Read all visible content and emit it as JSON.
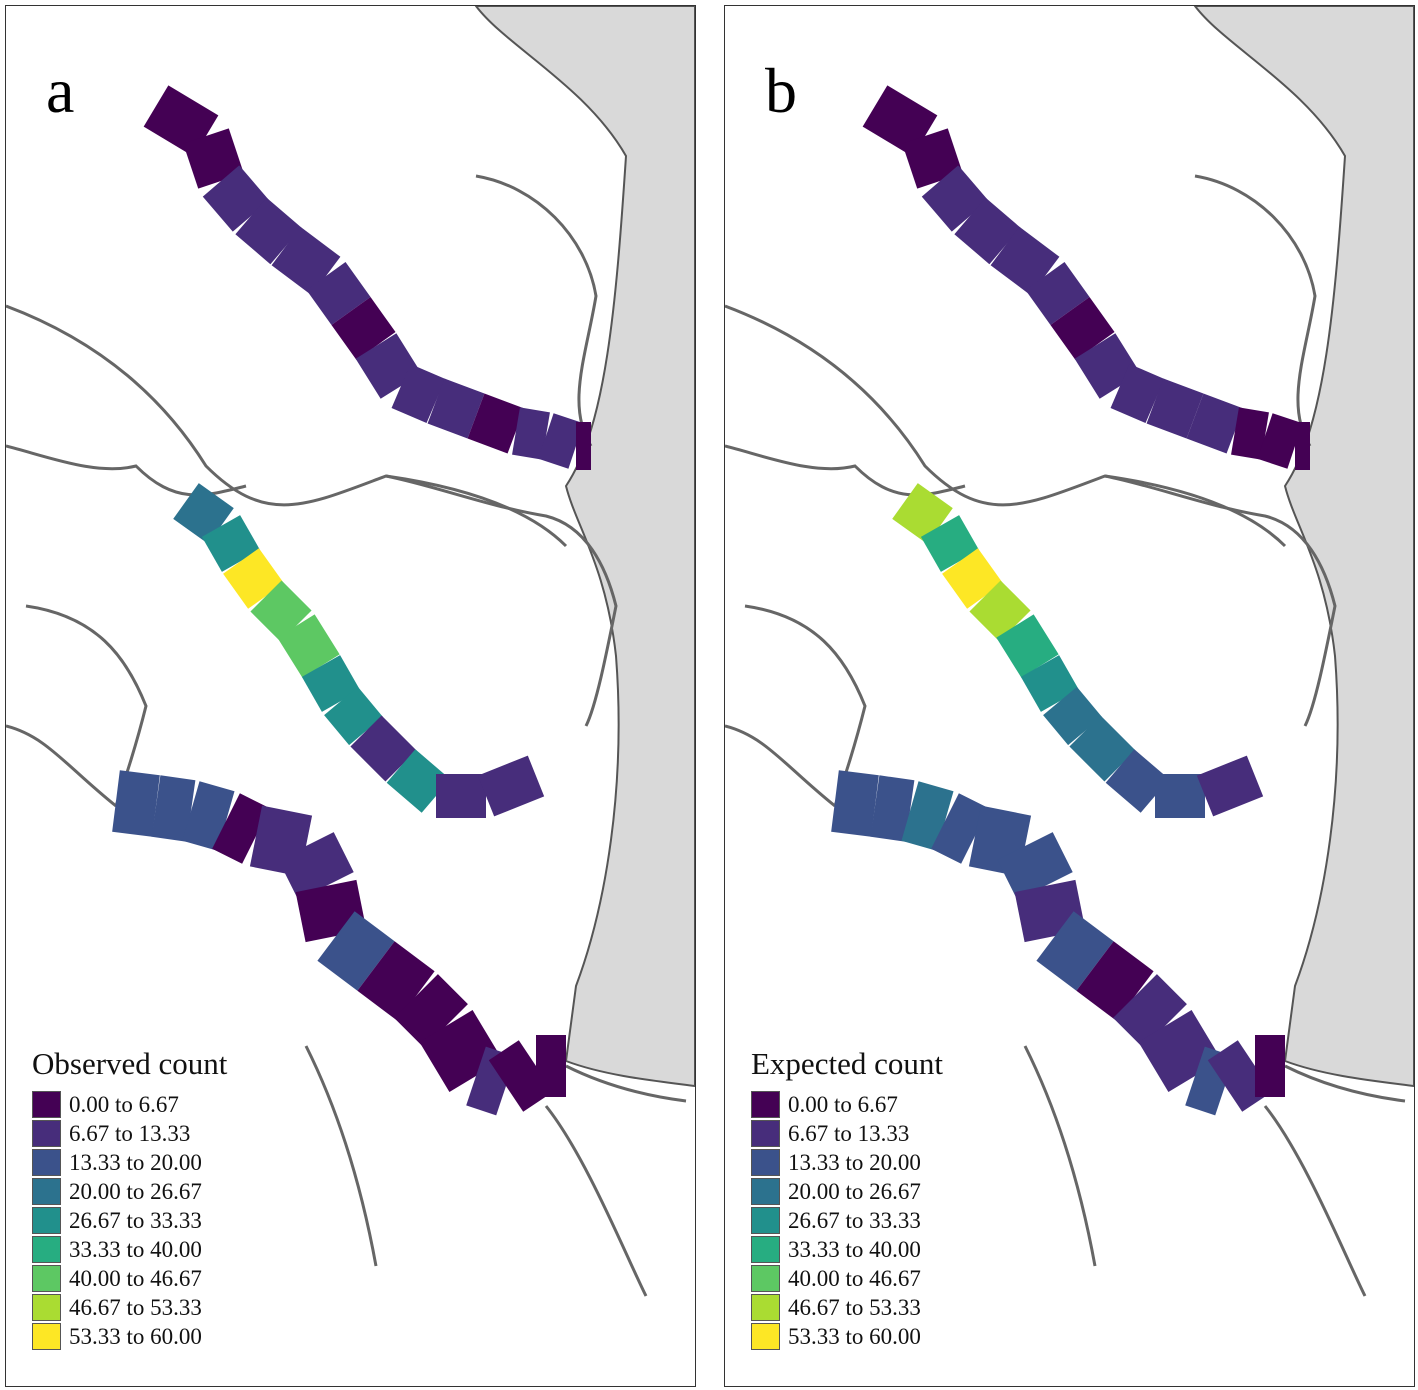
{
  "palette": [
    "#440154",
    "#472D7B",
    "#3B528B",
    "#2C728E",
    "#21908C",
    "#27AD81",
    "#5DC863",
    "#AADC32",
    "#FDE725"
  ],
  "classes": [
    "0.00 to 6.67",
    "6.67 to 13.33",
    "13.33 to 20.00",
    "20.00 to 26.67",
    "26.67 to 33.33",
    "33.33 to 40.00",
    "40.00 to 46.67",
    "46.67 to 53.33",
    "53.33 to 60.00"
  ],
  "panels": [
    {
      "label": "a",
      "legend_title": "Observed count",
      "rivers": {
        "rappahannock": [
          0,
          0,
          1,
          1,
          1,
          1,
          0,
          1,
          1,
          1,
          0,
          1,
          1,
          0
        ],
        "york": [
          3,
          4,
          8,
          6,
          6,
          4,
          4,
          1,
          4,
          1,
          1
        ],
        "james": [
          2,
          2,
          2,
          0,
          1,
          1,
          0,
          2,
          0,
          0,
          0,
          1,
          0,
          0
        ]
      }
    },
    {
      "label": "b",
      "legend_title": "Expected count",
      "rivers": {
        "rappahannock": [
          0,
          0,
          1,
          1,
          1,
          1,
          0,
          1,
          1,
          1,
          1,
          0,
          0,
          0
        ],
        "york": [
          7,
          5,
          8,
          7,
          5,
          4,
          3,
          3,
          2,
          2,
          1
        ],
        "james": [
          2,
          2,
          3,
          2,
          2,
          2,
          1,
          2,
          0,
          1,
          1,
          2,
          1,
          0
        ]
      }
    }
  ]
}
